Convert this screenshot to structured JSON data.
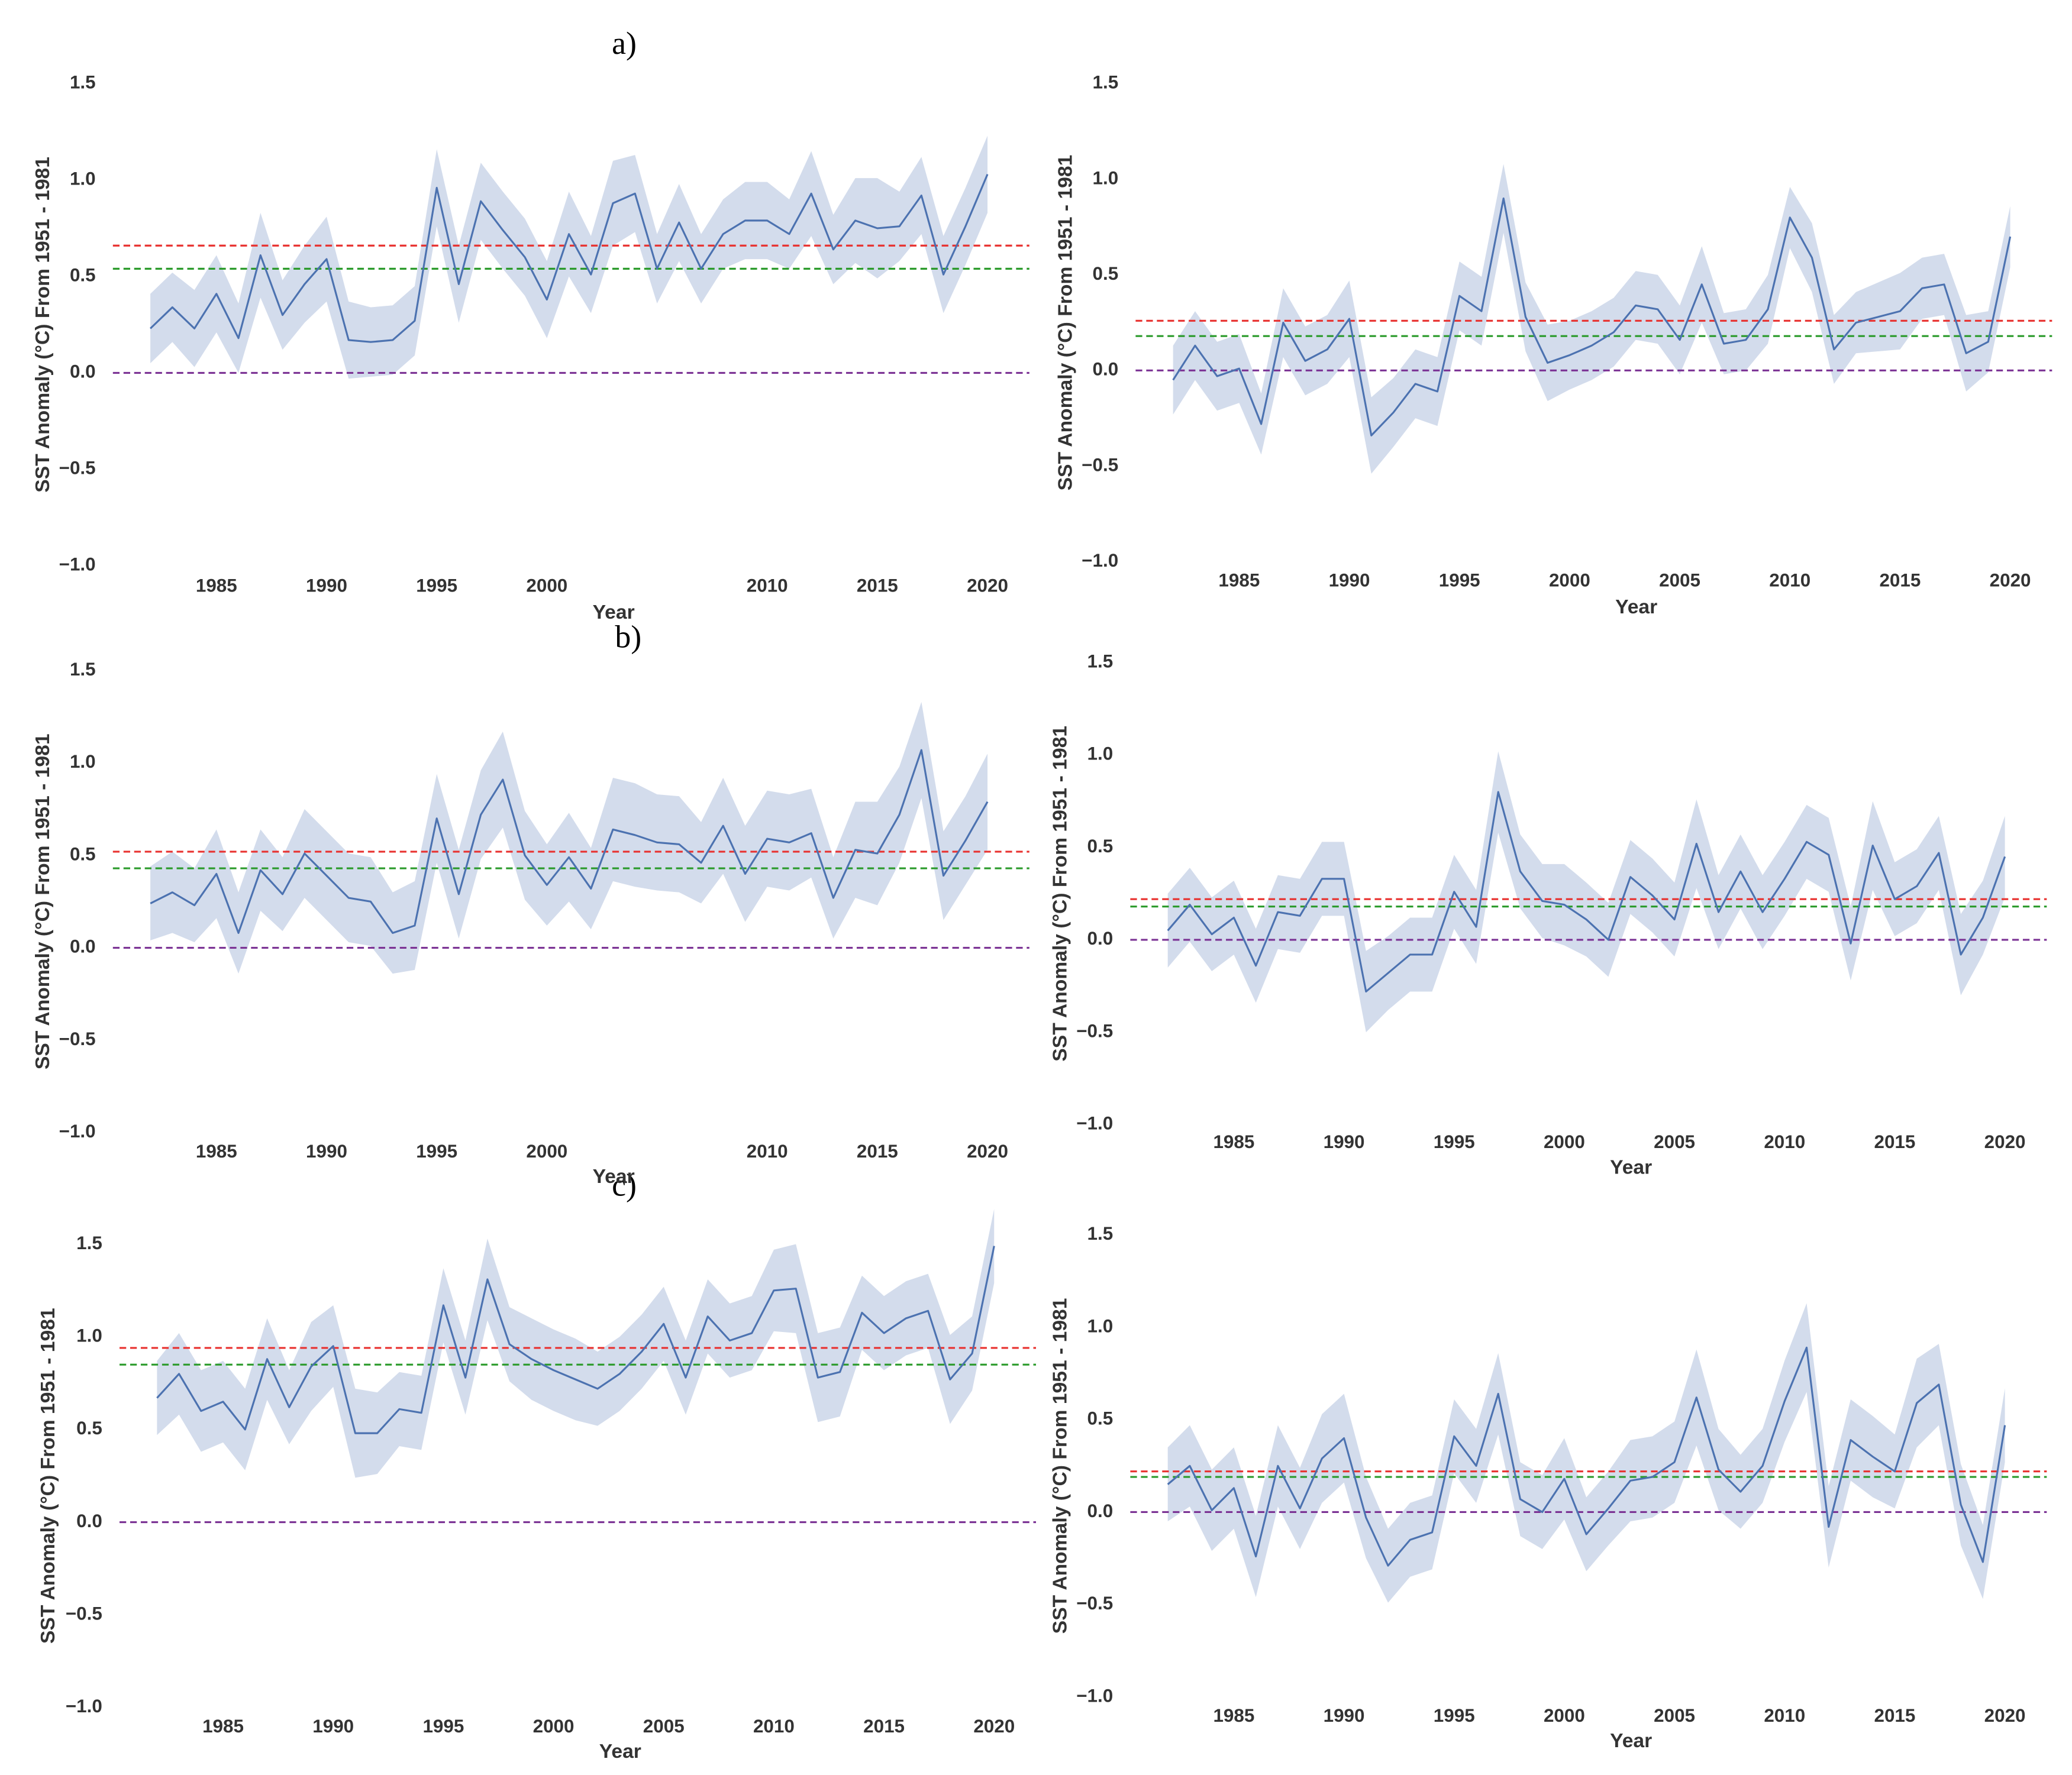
{
  "panel_labels": [
    "a)",
    "b)",
    "c)"
  ],
  "chart_data": [
    {
      "type": "line",
      "xlabel": "Year",
      "ylabel": "SST Anomaly (°C) From 1951 - 1981",
      "x": [
        1982,
        1983,
        1984,
        1985,
        1986,
        1987,
        1988,
        1989,
        1990,
        1991,
        1992,
        1993,
        1994,
        1995,
        1996,
        1997,
        1998,
        1999,
        2000,
        2001,
        2002,
        2003,
        2004,
        2005,
        2006,
        2007,
        2008,
        2009,
        2010,
        2011,
        2012,
        2013,
        2014,
        2015,
        2016,
        2017,
        2018,
        2019,
        2020
      ],
      "values": [
        0.23,
        0.34,
        0.23,
        0.41,
        0.18,
        0.61,
        0.3,
        0.46,
        0.59,
        0.17,
        0.16,
        0.17,
        0.27,
        0.96,
        0.46,
        0.89,
        0.74,
        0.6,
        0.38,
        0.72,
        0.51,
        0.88,
        0.93,
        0.54,
        0.78,
        0.54,
        0.72,
        0.79,
        0.79,
        0.72,
        0.93,
        0.64,
        0.79,
        0.75,
        0.76,
        0.92,
        0.51,
        0.76,
        1.03
      ],
      "errors": [
        0.18,
        0.18,
        0.2,
        0.2,
        0.18,
        0.22,
        0.18,
        0.2,
        0.22,
        0.2,
        0.18,
        0.18,
        0.18,
        0.2,
        0.2,
        0.2,
        0.2,
        0.2,
        0.2,
        0.22,
        0.2,
        0.22,
        0.2,
        0.18,
        0.2,
        0.18,
        0.18,
        0.2,
        0.2,
        0.18,
        0.22,
        0.18,
        0.22,
        0.26,
        0.18,
        0.2,
        0.2,
        0.2,
        0.2
      ],
      "color": "#4c72b0",
      "band_color": "#d3dcec",
      "hlines": [
        {
          "value": 0.66,
          "color": "#e8312f"
        },
        {
          "value": 0.54,
          "color": "#2a9a2a"
        },
        {
          "value": 0,
          "color": "#7b3294"
        }
      ],
      "xlim": [
        1980.3,
        2021.9
      ],
      "xticks": [
        1985,
        1990,
        1995,
        2000,
        2010,
        2015,
        2020
      ],
      "ylim": [
        -1,
        1.5
      ],
      "yticks": [
        {
          "value": -1,
          "label": "−1.0"
        },
        {
          "value": -0.5,
          "label": "−0.5"
        },
        {
          "value": 0,
          "label": "0.0"
        },
        0.5,
        {
          "value": 1,
          "label": "1.0"
        },
        1.5
      ]
    },
    {
      "type": "line",
      "xlabel": "Year",
      "ylabel": "SST Anomaly (°C) From 1951 - 1981",
      "x": [
        1982,
        1983,
        1984,
        1985,
        1986,
        1987,
        1988,
        1989,
        1990,
        1991,
        1992,
        1993,
        1994,
        1995,
        1996,
        1997,
        1998,
        1999,
        2000,
        2001,
        2002,
        2003,
        2004,
        2005,
        2006,
        2007,
        2008,
        2009,
        2010,
        2011,
        2012,
        2013,
        2014,
        2015,
        2016,
        2017,
        2018,
        2019,
        2020
      ],
      "values": [
        -0.05,
        0.13,
        -0.03,
        0.01,
        -0.28,
        0.25,
        0.05,
        0.11,
        0.27,
        -0.34,
        -0.22,
        -0.07,
        -0.11,
        0.39,
        0.31,
        0.9,
        0.28,
        0.04,
        0.08,
        0.13,
        0.2,
        0.34,
        0.32,
        0.16,
        0.45,
        0.14,
        0.16,
        0.32,
        0.8,
        0.59,
        0.11,
        0.25,
        0.28,
        0.31,
        0.43,
        0.45,
        0.09,
        0.15,
        0.7
      ],
      "errors": [
        0.18,
        0.18,
        0.18,
        0.18,
        0.16,
        0.18,
        0.18,
        0.18,
        0.2,
        0.2,
        0.18,
        0.18,
        0.18,
        0.18,
        0.18,
        0.18,
        0.18,
        0.2,
        0.18,
        0.18,
        0.18,
        0.18,
        0.18,
        0.18,
        0.2,
        0.16,
        0.16,
        0.18,
        0.16,
        0.18,
        0.18,
        0.16,
        0.18,
        0.2,
        0.16,
        0.16,
        0.2,
        0.16,
        0.16
      ],
      "color": "#4c72b0",
      "band_color": "#d3dcec",
      "hlines": [
        {
          "value": 0.26,
          "color": "#e8312f"
        },
        {
          "value": 0.18,
          "color": "#2a9a2a"
        },
        {
          "value": 0,
          "color": "#7b3294"
        }
      ],
      "xlim": [
        1980.3,
        2021.9
      ],
      "xticks": [
        1985,
        1990,
        1995,
        2000,
        2005,
        2010,
        2015,
        2020
      ],
      "ylim": [
        -1,
        1.5
      ],
      "yticks": [
        {
          "value": -1,
          "label": "−1.0"
        },
        {
          "value": -0.5,
          "label": "−0.5"
        },
        {
          "value": 0,
          "label": "0.0"
        },
        0.5,
        {
          "value": 1,
          "label": "1.0"
        },
        1.5
      ]
    },
    {
      "type": "line",
      "xlabel": "Year",
      "ylabel": "SST Anomaly (°C) From 1951 - 1981",
      "x": [
        1982,
        1983,
        1984,
        1985,
        1986,
        1987,
        1988,
        1989,
        1990,
        1991,
        1992,
        1993,
        1994,
        1995,
        1996,
        1997,
        1998,
        1999,
        2000,
        2001,
        2002,
        2003,
        2004,
        2005,
        2006,
        2007,
        2008,
        2009,
        2010,
        2011,
        2012,
        2013,
        2014,
        2015,
        2016,
        2017,
        2018,
        2019,
        2020
      ],
      "values": [
        0.24,
        0.3,
        0.23,
        0.4,
        0.08,
        0.42,
        0.29,
        0.51,
        0.39,
        0.27,
        0.25,
        0.08,
        0.12,
        0.7,
        0.29,
        0.72,
        0.91,
        0.5,
        0.34,
        0.49,
        0.32,
        0.64,
        0.61,
        0.57,
        0.56,
        0.46,
        0.66,
        0.4,
        0.59,
        0.57,
        0.62,
        0.27,
        0.53,
        0.51,
        0.72,
        1.07,
        0.39,
        0.58,
        0.79
      ],
      "errors": [
        0.2,
        0.22,
        0.2,
        0.24,
        0.22,
        0.22,
        0.2,
        0.24,
        0.24,
        0.24,
        0.24,
        0.22,
        0.24,
        0.24,
        0.24,
        0.24,
        0.26,
        0.24,
        0.22,
        0.24,
        0.22,
        0.28,
        0.28,
        0.26,
        0.26,
        0.22,
        0.26,
        0.26,
        0.26,
        0.26,
        0.24,
        0.22,
        0.26,
        0.28,
        0.26,
        0.26,
        0.24,
        0.24,
        0.26
      ],
      "color": "#4c72b0",
      "band_color": "#d3dcec",
      "hlines": [
        {
          "value": 0.52,
          "color": "#e8312f"
        },
        {
          "value": 0.43,
          "color": "#2a9a2a"
        },
        {
          "value": 0,
          "color": "#7b3294"
        }
      ],
      "xlim": [
        1980.3,
        2021.9
      ],
      "xticks": [
        1985,
        1990,
        1995,
        2000,
        2010,
        2015,
        2020
      ],
      "ylim": [
        -1,
        1.5
      ],
      "yticks": [
        {
          "value": -1,
          "label": "−1.0"
        },
        {
          "value": -0.5,
          "label": "−0.5"
        },
        {
          "value": 0,
          "label": "0.0"
        },
        0.5,
        {
          "value": 1,
          "label": "1.0"
        },
        1.5
      ]
    },
    {
      "type": "line",
      "xlabel": "Year",
      "ylabel": "SST Anomaly (°C) From 1951 - 1981",
      "x": [
        1982,
        1983,
        1984,
        1985,
        1986,
        1987,
        1988,
        1989,
        1990,
        1991,
        1992,
        1993,
        1994,
        1995,
        1996,
        1997,
        1998,
        1999,
        2000,
        2001,
        2002,
        2003,
        2004,
        2005,
        2006,
        2007,
        2008,
        2009,
        2010,
        2011,
        2012,
        2013,
        2014,
        2015,
        2016,
        2017,
        2018,
        2019,
        2020
      ],
      "values": [
        0.05,
        0.19,
        0.03,
        0.12,
        -0.14,
        0.15,
        0.13,
        0.33,
        0.33,
        -0.28,
        -0.18,
        -0.08,
        -0.08,
        0.26,
        0.07,
        0.8,
        0.37,
        0.21,
        0.19,
        0.11,
        0.0,
        0.34,
        0.24,
        0.11,
        0.52,
        0.15,
        0.37,
        0.15,
        0.33,
        0.53,
        0.46,
        -0.02,
        0.51,
        0.22,
        0.29,
        0.47,
        -0.08,
        0.12,
        0.45
      ],
      "errors": [
        0.2,
        0.2,
        0.2,
        0.2,
        0.2,
        0.2,
        0.2,
        0.2,
        0.2,
        0.22,
        0.2,
        0.2,
        0.2,
        0.2,
        0.2,
        0.22,
        0.2,
        0.2,
        0.22,
        0.2,
        0.2,
        0.2,
        0.2,
        0.2,
        0.24,
        0.2,
        0.2,
        0.2,
        0.2,
        0.2,
        0.2,
        0.2,
        0.24,
        0.2,
        0.2,
        0.2,
        0.22,
        0.2,
        0.22
      ],
      "color": "#4c72b0",
      "band_color": "#d3dcec",
      "hlines": [
        {
          "value": 0.22,
          "color": "#e8312f"
        },
        {
          "value": 0.18,
          "color": "#2a9a2a"
        },
        {
          "value": 0,
          "color": "#7b3294"
        }
      ],
      "xlim": [
        1980.3,
        2021.9
      ],
      "xticks": [
        1985,
        1990,
        1995,
        2000,
        2005,
        2010,
        2015,
        2020
      ],
      "ylim": [
        -1,
        1.5
      ],
      "yticks": [
        {
          "value": -1,
          "label": "−1.0"
        },
        {
          "value": -0.5,
          "label": "−0.5"
        },
        {
          "value": 0,
          "label": "0.0"
        },
        0.5,
        {
          "value": 1,
          "label": "1.0"
        },
        1.5
      ]
    },
    {
      "type": "line",
      "xlabel": "Year",
      "ylabel": "SST Anomaly (°C) From 1951 - 1981",
      "x": [
        1982,
        1983,
        1984,
        1985,
        1986,
        1987,
        1988,
        1989,
        1990,
        1991,
        1992,
        1993,
        1994,
        1995,
        1996,
        1997,
        1998,
        1999,
        2000,
        2001,
        2002,
        2003,
        2004,
        2005,
        2006,
        2007,
        2008,
        2009,
        2010,
        2011,
        2012,
        2013,
        2014,
        2015,
        2016,
        2017,
        2018,
        2019,
        2020
      ],
      "values": [
        0.67,
        0.8,
        0.6,
        0.65,
        0.5,
        0.88,
        0.62,
        0.84,
        0.95,
        0.48,
        0.48,
        0.61,
        0.59,
        1.17,
        0.78,
        1.31,
        0.96,
        0.88,
        0.82,
        0.77,
        0.72,
        0.8,
        0.92,
        1.07,
        0.78,
        1.11,
        0.98,
        1.02,
        1.25,
        1.26,
        0.78,
        0.81,
        1.13,
        1.02,
        1.1,
        1.14,
        0.77,
        0.91,
        1.49
      ],
      "errors": [
        0.2,
        0.22,
        0.22,
        0.22,
        0.22,
        0.22,
        0.2,
        0.24,
        0.22,
        0.24,
        0.22,
        0.2,
        0.2,
        0.2,
        0.2,
        0.22,
        0.2,
        0.22,
        0.22,
        0.22,
        0.2,
        0.2,
        0.2,
        0.2,
        0.2,
        0.2,
        0.2,
        0.2,
        0.22,
        0.24,
        0.24,
        0.24,
        0.2,
        0.2,
        0.2,
        0.2,
        0.24,
        0.2,
        0.2
      ],
      "color": "#4c72b0",
      "band_color": "#d3dcec",
      "hlines": [
        {
          "value": 0.94,
          "color": "#e8312f"
        },
        {
          "value": 0.85,
          "color": "#2a9a2a"
        },
        {
          "value": 0,
          "color": "#7b3294"
        }
      ],
      "xlim": [
        1980.3,
        2021.9
      ],
      "xticks": [
        1985,
        1990,
        1995,
        2000,
        2005,
        2010,
        2015,
        2020
      ],
      "ylim": [
        -1,
        1.5
      ],
      "yticks": [
        {
          "value": -1,
          "label": "−1.0"
        },
        {
          "value": -0.5,
          "label": "−0.5"
        },
        {
          "value": 0,
          "label": "0.0"
        },
        0.5,
        {
          "value": 1,
          "label": "1.0"
        },
        1.5
      ]
    },
    {
      "type": "line",
      "xlabel": "Year",
      "ylabel": "SST Anomaly (°C) From 1951 - 1981",
      "x": [
        1982,
        1983,
        1984,
        1985,
        1986,
        1987,
        1988,
        1989,
        1990,
        1991,
        1992,
        1993,
        1994,
        1995,
        1996,
        1997,
        1998,
        1999,
        2000,
        2001,
        2002,
        2003,
        2004,
        2005,
        2006,
        2007,
        2008,
        2009,
        2010,
        2011,
        2012,
        2013,
        2014,
        2015,
        2016,
        2017,
        2018,
        2019,
        2020
      ],
      "values": [
        0.15,
        0.25,
        0.01,
        0.13,
        -0.24,
        0.25,
        0.02,
        0.29,
        0.4,
        -0.03,
        -0.29,
        -0.15,
        -0.11,
        0.41,
        0.25,
        0.64,
        0.07,
        0.0,
        0.18,
        -0.12,
        0.02,
        0.17,
        0.19,
        0.27,
        0.62,
        0.23,
        0.11,
        0.25,
        0.6,
        0.89,
        -0.08,
        0.39,
        0.3,
        0.22,
        0.59,
        0.69,
        0.04,
        -0.27,
        0.47
      ],
      "errors": [
        0.2,
        0.22,
        0.22,
        0.22,
        0.22,
        0.22,
        0.22,
        0.24,
        0.24,
        0.22,
        0.2,
        0.2,
        0.2,
        0.2,
        0.2,
        0.22,
        0.2,
        0.2,
        0.22,
        0.2,
        0.2,
        0.22,
        0.22,
        0.22,
        0.26,
        0.22,
        0.2,
        0.2,
        0.22,
        0.24,
        0.22,
        0.22,
        0.22,
        0.2,
        0.24,
        0.22,
        0.22,
        0.2,
        0.2
      ],
      "color": "#4c72b0",
      "band_color": "#d3dcec",
      "hlines": [
        {
          "value": 0.22,
          "color": "#e8312f"
        },
        {
          "value": 0.19,
          "color": "#2a9a2a"
        },
        {
          "value": 0,
          "color": "#7b3294"
        }
      ],
      "xlim": [
        1980.3,
        2021.9
      ],
      "xticks": [
        1985,
        1990,
        1995,
        2000,
        2005,
        2010,
        2015,
        2020
      ],
      "ylim": [
        -1,
        1.5
      ],
      "yticks": [
        {
          "value": -1,
          "label": "−1.0"
        },
        {
          "value": -0.5,
          "label": "−0.5"
        },
        {
          "value": 0,
          "label": "0.0"
        },
        0.5,
        {
          "value": 1,
          "label": "1.0"
        },
        1.5
      ]
    }
  ]
}
